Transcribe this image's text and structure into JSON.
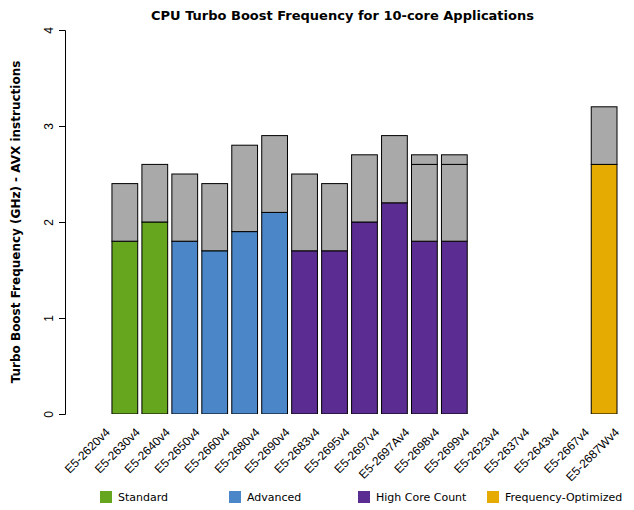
{
  "chart_data": {
    "type": "bar",
    "title": "CPU Turbo Boost Frequency for 10-core Applications",
    "y_label": "Turbo Boost Frequency (GHz) - AVX instructions",
    "stacked": true,
    "grid": false,
    "legend": "bottom",
    "categories": [
      "E5-2620v4",
      "E5-2630v4",
      "E5-2640v4",
      "E5-2650v4",
      "E5-2660v4",
      "E5-2680v4",
      "E5-2690v4",
      "E5-2683v4",
      "E5-2695v4",
      "E5-2697v4",
      "E5-2697Av4",
      "E5-2698v4",
      "E5-2699v4",
      "E5-2623v4",
      "E5-2637v4",
      "E5-2643v4",
      "E5-2667v4",
      "E5-2687Wv4"
    ],
    "ylim": [
      0,
      4
    ],
    "yticks": [
      0,
      1,
      2,
      3,
      4
    ],
    "series": [
      {
        "name": "Standard",
        "color": "#66a61e",
        "values": [
          null,
          1.8,
          2.0,
          null,
          null,
          null,
          null,
          null,
          null,
          null,
          null,
          null,
          null,
          null,
          null,
          null,
          null,
          null
        ]
      },
      {
        "name": "Advanced",
        "color": "#4a86c8",
        "values": [
          null,
          null,
          null,
          1.8,
          1.7,
          1.9,
          2.1,
          null,
          null,
          null,
          null,
          null,
          null,
          null,
          null,
          null,
          null,
          null
        ]
      },
      {
        "name": "High Core Count",
        "color": "#5b2d92",
        "values": [
          null,
          null,
          null,
          null,
          null,
          null,
          null,
          1.7,
          1.7,
          2.0,
          2.2,
          1.8,
          1.8,
          null,
          null,
          null,
          null,
          null
        ]
      },
      {
        "name": "Frequency-Optimized",
        "color": "#e6ab02",
        "values": [
          null,
          null,
          null,
          null,
          null,
          null,
          null,
          null,
          null,
          null,
          null,
          null,
          null,
          null,
          null,
          null,
          null,
          2.6
        ]
      },
      {
        "color": "#a9a9a9",
        "values": [
          null,
          0.6,
          0.6,
          0.7,
          0.7,
          0.9,
          0.8,
          0.8,
          0.7,
          0.7,
          0.7,
          0.8,
          0.8,
          null,
          null,
          null,
          null,
          0.6
        ]
      },
      {
        "color": "#a9a9a9",
        "values": [
          null,
          null,
          null,
          null,
          0,
          null,
          0,
          null,
          0,
          0,
          0,
          0.1,
          0.1,
          null,
          null,
          null,
          null,
          null
        ]
      }
    ]
  }
}
